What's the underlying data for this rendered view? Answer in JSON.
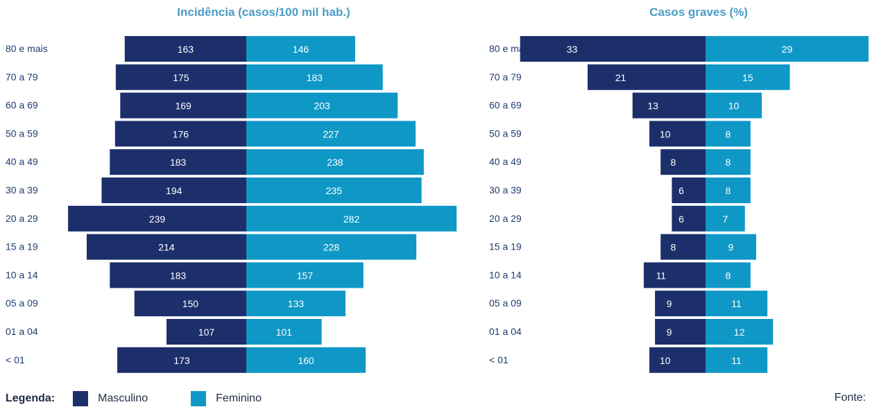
{
  "chart_data": [
    {
      "type": "bar",
      "title": "Incidência (casos/100 mil hab.)",
      "categories": [
        "80 e mais",
        "70 a 79",
        "60 a 69",
        "50 a 59",
        "40 a 49",
        "30 a 39",
        "20 a 29",
        "15 a 19",
        "10 a 14",
        "05 a 09",
        "01 a 04",
        "< 01"
      ],
      "series": [
        {
          "name": "Masculino",
          "color": "#1c2f6b",
          "values": [
            163,
            175,
            169,
            176,
            183,
            194,
            239,
            214,
            183,
            150,
            107,
            173
          ]
        },
        {
          "name": "Feminino",
          "color": "#0f98c6",
          "values": [
            146,
            183,
            203,
            227,
            238,
            235,
            282,
            228,
            157,
            133,
            101,
            160
          ]
        }
      ]
    },
    {
      "type": "bar",
      "title": "Casos graves (%)",
      "categories": [
        "80 e mais",
        "70 a 79",
        "60 a 69",
        "50 a 59",
        "40 a 49",
        "30 a 39",
        "20 a 29",
        "15 a 19",
        "10 a 14",
        "05 a 09",
        "01 a 04",
        "< 01"
      ],
      "series": [
        {
          "name": "Masculino",
          "color": "#1c2f6b",
          "values": [
            33,
            21,
            13,
            10,
            8,
            6,
            6,
            8,
            11,
            9,
            9,
            10
          ]
        },
        {
          "name": "Feminino",
          "color": "#0f98c6",
          "values": [
            29,
            15,
            10,
            8,
            8,
            8,
            7,
            9,
            8,
            11,
            12,
            11
          ]
        }
      ]
    }
  ],
  "legend": {
    "title": "Legenda:",
    "items": [
      {
        "label": "Masculino",
        "color": "#1c2f6b"
      },
      {
        "label": "Feminino",
        "color": "#0f98c6"
      }
    ]
  },
  "source": "Fonte:"
}
